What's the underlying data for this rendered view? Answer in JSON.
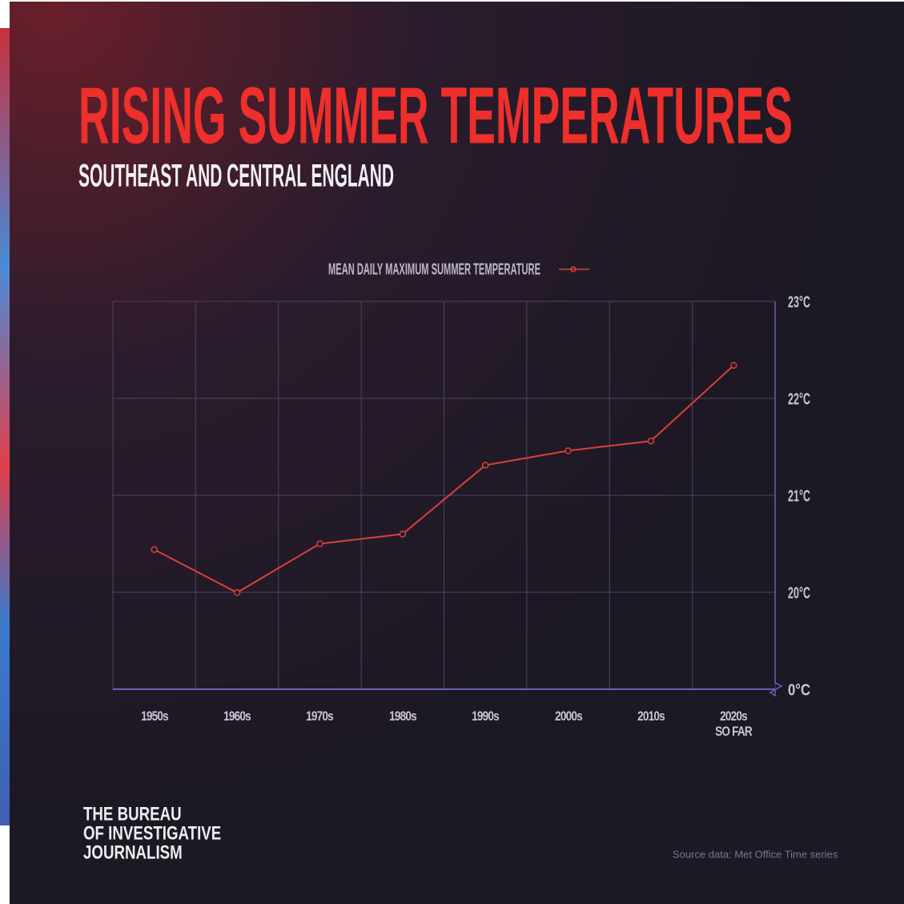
{
  "title": "RISING SUMMER TEMPERATURES",
  "subtitle": "SOUTHEAST AND CENTRAL ENGLAND",
  "brand": "THE BUREAU OF INVESTIGATIVE JOURNALISM",
  "source": "Source data: Met Office Time series",
  "chart_data": {
    "type": "line",
    "categories": [
      "1950s",
      "1960s",
      "1970s",
      "1980s",
      "1990s",
      "2000s",
      "2010s",
      "2020s SO FAR"
    ],
    "series": [
      {
        "name": "MEAN DAILY MAXIMUM SUMMER TEMPERATURE",
        "color": "#d9403a",
        "values": [
          20.44,
          19.93,
          20.5,
          20.6,
          21.31,
          21.46,
          21.56,
          22.34
        ]
      }
    ],
    "ylim": [
      0,
      23
    ],
    "yticks": [
      {
        "value": 0,
        "label": "0°C"
      },
      {
        "value": 20,
        "label": "20°C"
      },
      {
        "value": 21,
        "label": "21°C"
      },
      {
        "value": 22,
        "label": "22°C"
      },
      {
        "value": 23,
        "label": "23°C"
      }
    ],
    "y_axis_break": true,
    "grid": true,
    "legend": "top"
  }
}
